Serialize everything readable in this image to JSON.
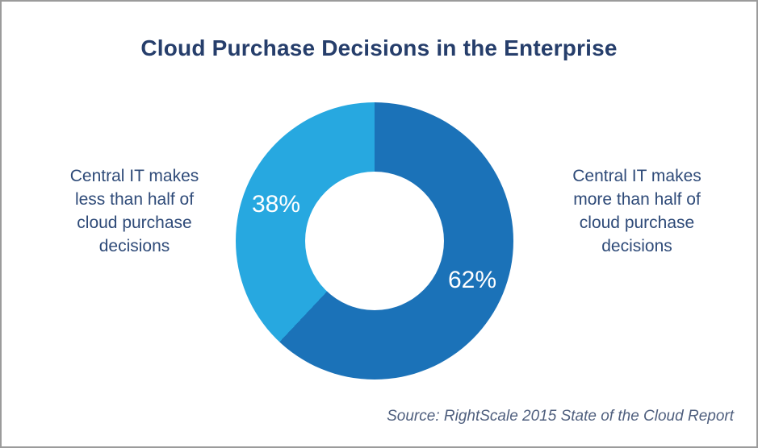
{
  "chart_data": {
    "type": "pie",
    "subtype": "donut",
    "title": "Cloud Purchase Decisions in the Enterprise",
    "segments": [
      {
        "name": "Central IT makes more than half of cloud purchase decisions",
        "value": 62,
        "display": "62%",
        "color": "#1b72b8"
      },
      {
        "name": "Central IT makes less than half of cloud purchase decisions",
        "value": 38,
        "display": "38%",
        "color": "#27a8e0"
      }
    ],
    "start_angle_deg": 0,
    "direction": "clockwise",
    "inner_radius_ratio": 0.5,
    "legend_position": "none",
    "source": "Source: RightScale 2015 State of the Cloud Report"
  },
  "annotations": {
    "left": {
      "lines": [
        "Central IT makes",
        "less than half of",
        "cloud purchase",
        "decisions"
      ]
    },
    "right": {
      "lines": [
        "Central IT makes",
        "more than half of",
        "cloud purchase",
        "decisions"
      ]
    }
  },
  "colors": {
    "title_text": "#263e6b",
    "annotation_text": "#2e4a78",
    "source_text": "#4f5f7e",
    "segment_major": "#1b72b8",
    "segment_minor": "#27a8e0",
    "frame_border": "#9b9b9b"
  }
}
